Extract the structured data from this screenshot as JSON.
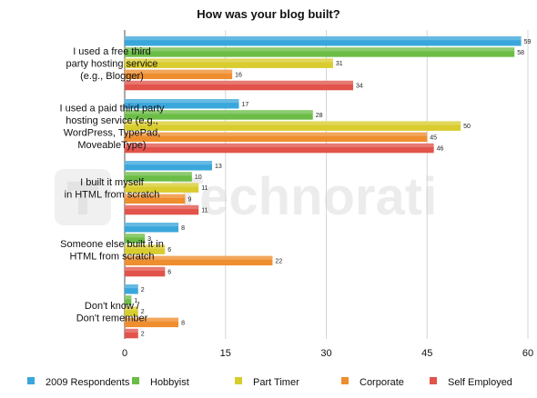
{
  "chart_data": {
    "type": "bar",
    "orientation": "horizontal",
    "title": "How was your blog built?",
    "categories": [
      "I used a free third party hosting service (e.g., Blogger)",
      "I used a paid third party hosting service (e.g., WordPress, TypePad, MoveableType)",
      "I built it myself in HTML from scratch",
      "Someone else built it in HTML from scratch",
      "Don't know / Don't remember"
    ],
    "category_lines": [
      [
        "I used a free third",
        "party hosting service",
        "(e.g., Blogger)"
      ],
      [
        "I used a paid third party",
        "hosting service (e.g.,",
        "WordPress, TypePad,",
        "MoveableType)"
      ],
      [
        "I built it myself",
        "in HTML from scratch"
      ],
      [
        "Someone else built it in",
        "HTML from scratch"
      ],
      [
        "Don't know /",
        "Don't remember"
      ]
    ],
    "series": [
      {
        "name": "2009 Respondents",
        "color": "#3aa7dc",
        "values": [
          59,
          17,
          13,
          8,
          2
        ]
      },
      {
        "name": "Hobbyist",
        "color": "#6bbd46",
        "values": [
          58,
          28,
          10,
          3,
          1
        ]
      },
      {
        "name": "Part Timer",
        "color": "#d9cc2e",
        "values": [
          31,
          50,
          11,
          6,
          2
        ]
      },
      {
        "name": "Corporate",
        "color": "#ef8e2e",
        "values": [
          16,
          45,
          9,
          22,
          8
        ]
      },
      {
        "name": "Self Employed",
        "color": "#e2534b",
        "values": [
          34,
          46,
          11,
          6,
          2
        ]
      }
    ],
    "xlim": [
      0,
      60
    ],
    "xticks": [
      "0",
      "15",
      "30",
      "45",
      "60"
    ],
    "grid": true,
    "legend_position": "bottom",
    "watermark": "Technorati"
  }
}
